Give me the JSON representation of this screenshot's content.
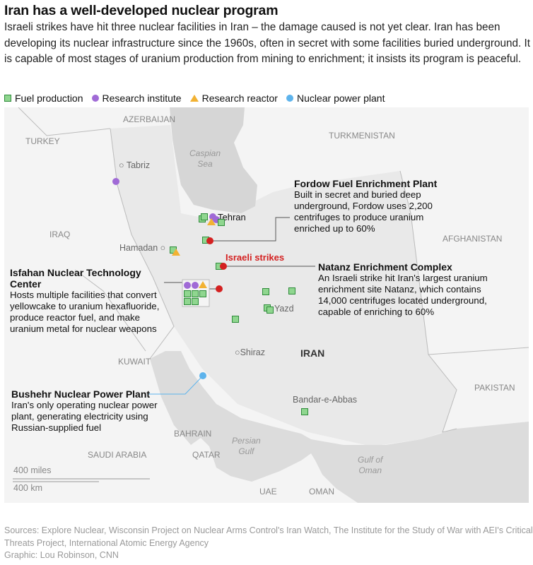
{
  "title": "Iran has a well-developed nuclear program",
  "dek": "Israeli strikes have hit three nuclear facilities in Iran – the damage caused is not yet clear. Iran has been developing its nuclear infrastructure since the 1960s, often in secret with some facilities buried underground. It is capable of most stages of uranium production from mining to enrichment; it insists its program is peaceful.",
  "legend": [
    {
      "label": "Fuel production",
      "icon": "green-square",
      "color": "#8fd68f"
    },
    {
      "label": "Research institute",
      "icon": "purple-circle",
      "color": "#a06ad6"
    },
    {
      "label": "Research reactor",
      "icon": "orange-triangle",
      "color": "#f2b233"
    },
    {
      "label": "Nuclear power plant",
      "icon": "blue-circle",
      "color": "#5db3ec"
    }
  ],
  "map": {
    "countries": [
      "AZERBAIJAN",
      "TURKEY",
      "TURKMENISTAN",
      "IRAQ",
      "AFGHANISTAN",
      "KUWAIT",
      "PAKISTAN",
      "BAHRAIN",
      "SAUDI ARABIA",
      "QATAR",
      "UAE",
      "OMAN"
    ],
    "main_country": "IRAN",
    "seas": {
      "caspian": "Caspian\nSea",
      "persian": "Persian\nGulf",
      "oman": "Gulf of\nOman"
    },
    "cities": [
      "Tabriz",
      "Tehran",
      "Hamadan",
      "Yazd",
      "Shiraz",
      "Bandar-e-Abbas"
    ],
    "strikes_label": "Israeli strikes",
    "strike_color": "#d42020",
    "scale": {
      "miles": "400 miles",
      "km": "400 km"
    }
  },
  "annotations": {
    "fordow": {
      "title": "Fordow Fuel Enrichment Plant",
      "body": "Built in secret and buried deep underground, Fordow uses 2,200 centrifuges to produce uranium enriched up to 60%"
    },
    "natanz": {
      "title": "Natanz Enrichment Complex",
      "body": "An Israeli strike hit Iran's largest uranium enrichment site Natanz, which contains 14,000 centrifuges located underground, capable of enriching to 60%"
    },
    "isfahan": {
      "title": "Isfahan Nuclear Technology Center",
      "body": "Hosts multiple facilities that convert yellowcake to uranium hexafluoride, produce reactor fuel, and make uranium metal for nuclear weapons"
    },
    "bushehr": {
      "title": "Bushehr Nuclear Power Plant",
      "body": "Iran's only operating nuclear power plant, generating electricity using Russian-supplied fuel"
    }
  },
  "sources": "Sources: Explore Nuclear, Wisconsin Project on Nuclear Arms Control's Iran Watch, The Institute for the Study of War with AEI's Critical Threats Project, International Atomic Energy Agency",
  "credit": "Graphic: Lou Robinson, CNN"
}
